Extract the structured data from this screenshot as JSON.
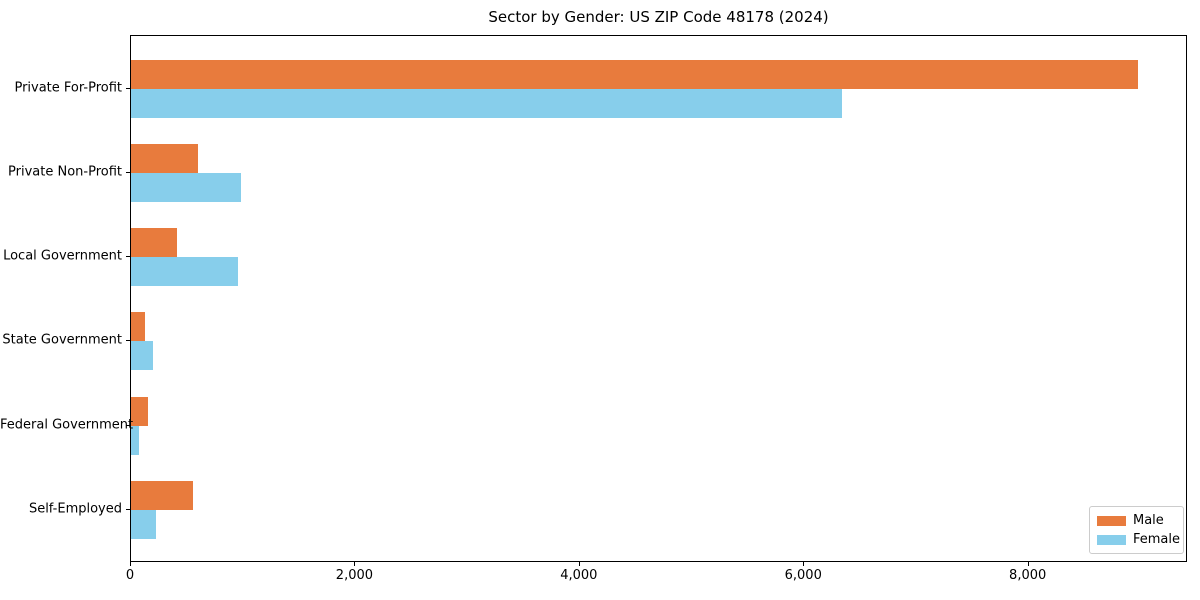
{
  "figure": {
    "background": "#ffffff",
    "axis_color": "#000000",
    "text_color": "#000000"
  },
  "chart_data": {
    "type": "bar",
    "orientation": "horizontal",
    "title": "Sector by Gender: US ZIP Code 48178 (2024)",
    "categories": [
      "Private For-Profit",
      "Private Non-Profit",
      "Local Government",
      "State Government",
      "Federal Government",
      "Self-Employed"
    ],
    "series": [
      {
        "name": "Male",
        "color": "#e87b3d",
        "values": [
          8970,
          595,
          410,
          125,
          150,
          550
        ]
      },
      {
        "name": "Female",
        "color": "#87ceeb",
        "values": [
          6340,
          980,
          955,
          200,
          70,
          220
        ]
      }
    ],
    "xlabel": "",
    "ylabel": "",
    "xlim": [
      0,
      9420
    ],
    "xticks": {
      "values": [
        0,
        2000,
        4000,
        6000,
        8000
      ],
      "labels": [
        "0",
        "2,000",
        "4,000",
        "6,000",
        "8,000"
      ]
    },
    "grid": false,
    "legend": {
      "position": "lower right",
      "entries": [
        "Male",
        "Female"
      ]
    }
  }
}
